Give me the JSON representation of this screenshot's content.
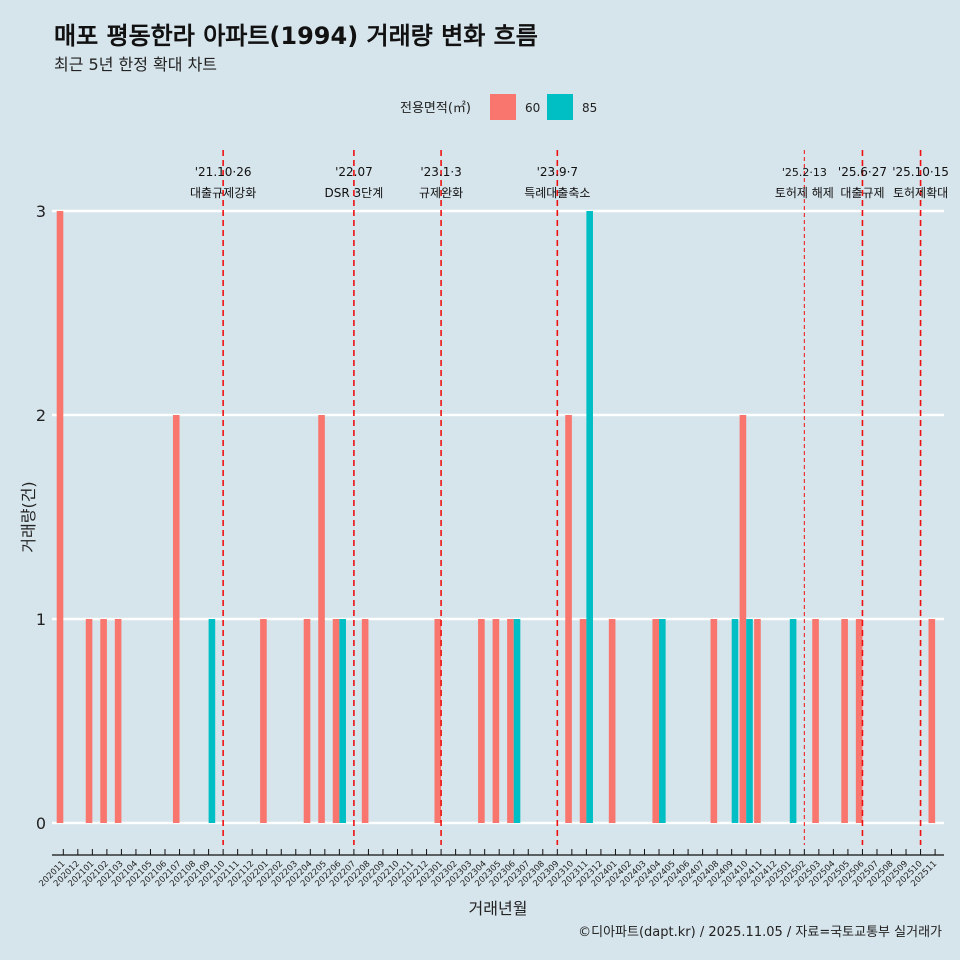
{
  "chart_data": {
    "type": "bar",
    "title": "매포 평동한라 아파트(1994) 거래량 변화 흐름",
    "subtitle": "최근 5년 한정 확대 차트",
    "xlabel": "거래년월",
    "ylabel": "거래량(건)",
    "ylim": [
      0,
      3
    ],
    "yticks": [
      "0",
      "1",
      "2",
      "3"
    ],
    "grid": true,
    "legend": {
      "title": "전용면적(㎡)",
      "position": "top",
      "entries": [
        "60",
        "85"
      ]
    },
    "colors": {
      "60": "#f8766d",
      "85": "#00bfc4",
      "event": "#ee1111"
    },
    "categories": [
      "202011",
      "202012",
      "202101",
      "202102",
      "202103",
      "202104",
      "202105",
      "202106",
      "202107",
      "202108",
      "202109",
      "202110",
      "202111",
      "202112",
      "202201",
      "202202",
      "202203",
      "202204",
      "202205",
      "202206",
      "202207",
      "202208",
      "202209",
      "202210",
      "202211",
      "202212",
      "202301",
      "202302",
      "202303",
      "202304",
      "202305",
      "202306",
      "202307",
      "202308",
      "202309",
      "202310",
      "202311",
      "202312",
      "202401",
      "202402",
      "202403",
      "202404",
      "202405",
      "202406",
      "202407",
      "202408",
      "202409",
      "202410",
      "202411",
      "202412",
      "202501",
      "202502",
      "202503",
      "202504",
      "202505",
      "202506",
      "202507",
      "202508",
      "202509",
      "202510",
      "202511"
    ],
    "series": [
      {
        "name": "60",
        "values": {
          "202011": 3,
          "202101": 1,
          "202102": 1,
          "202103": 1,
          "202107": 2,
          "202201": 1,
          "202204": 1,
          "202205": 2,
          "202206": 1,
          "202208": 1,
          "202301": 1,
          "202304": 1,
          "202305": 1,
          "202306": 1,
          "202310": 2,
          "202311": 1,
          "202401": 1,
          "202404": 1,
          "202408": 1,
          "202410": 2,
          "202411": 1,
          "202503": 1,
          "202505": 1,
          "202506": 1,
          "202511": 1
        }
      },
      {
        "name": "85",
        "values": {
          "202109": 1,
          "202206": 1,
          "202306": 1,
          "202311": 3,
          "202404": 1,
          "202409": 1,
          "202410": 1,
          "202501": 1
        }
      }
    ],
    "events": [
      {
        "month": "202110",
        "date": "'21.10·26",
        "label": "대출규제강화",
        "style": "dashed"
      },
      {
        "month": "202207",
        "date": "'22.07",
        "label": "DSR 3단계",
        "style": "dashed"
      },
      {
        "month": "202301",
        "date": "'23.1·3",
        "label": "규제완화",
        "style": "dashed"
      },
      {
        "month": "202309",
        "date": "'23.9·7",
        "label": "특례대출축소",
        "style": "dashed"
      },
      {
        "month": "202502",
        "date": "'25.2·13",
        "label": "토허제 해제",
        "style": "dotted"
      },
      {
        "month": "202506",
        "date": "'25.6·27",
        "label": "대출규제",
        "style": "dashed"
      },
      {
        "month": "202510",
        "date": "'25.10·15",
        "label": "토허제확대",
        "style": "dashed"
      }
    ],
    "caption": "©디아파트(dapt.kr) / 2025.11.05 / 자료=국토교통부 실거래가"
  }
}
